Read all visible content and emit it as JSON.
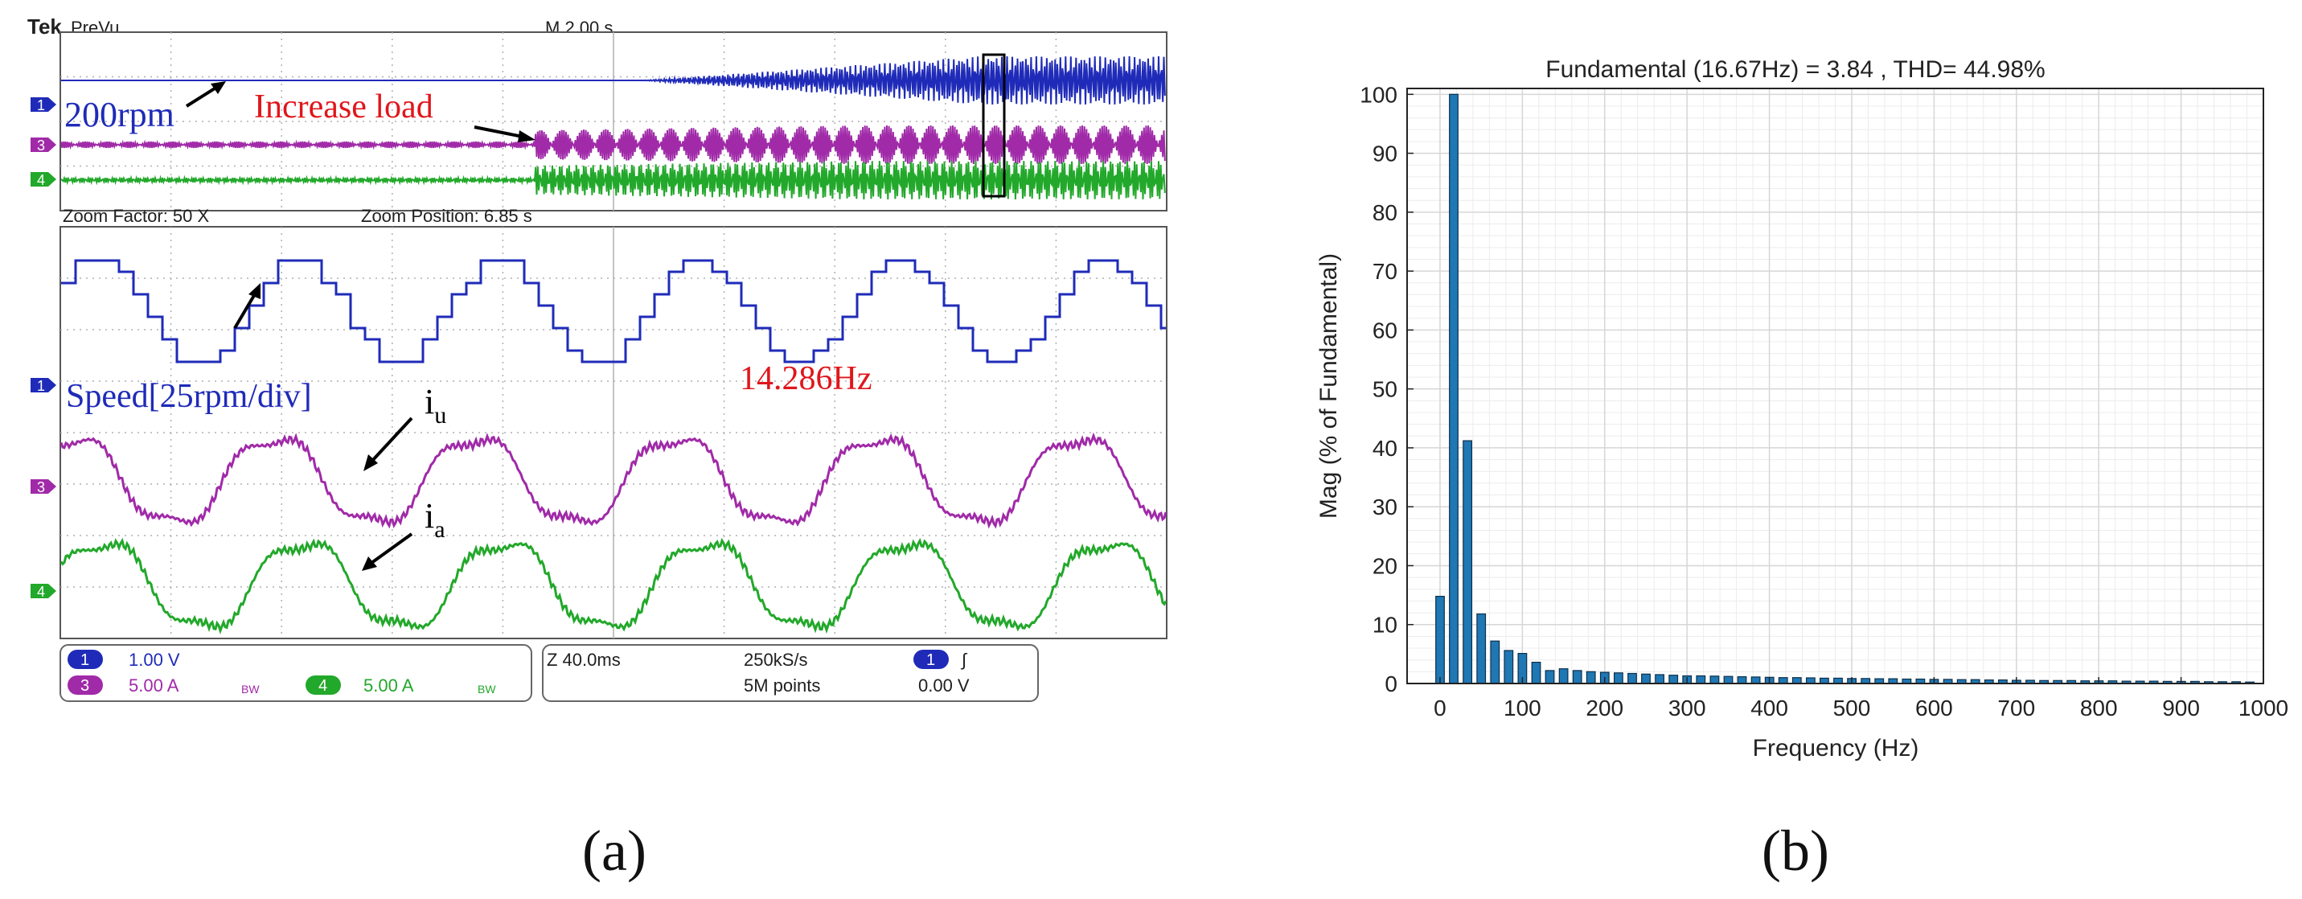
{
  "colors": {
    "ch1": "#1f2bb8",
    "ch3": "#a02aa8",
    "ch4": "#22a82a",
    "red_note": "#e0161b",
    "bar_fill": "#1f77b4",
    "grid": "#d6d6d6",
    "osc_grid": "#b0b0b0"
  },
  "scope": {
    "brand": "Tek",
    "mode": "PreVu",
    "timebase_top": "M 2.00 s",
    "zoom_factor": "Zoom Factor: 50 X",
    "zoom_position": "Zoom Position: 6.85 s",
    "ch_markers": [
      "1",
      "3",
      "4"
    ],
    "annotations": {
      "speed_200": "200rpm",
      "increase_load": "Increase load",
      "speed_div": "Speed[25rpm/div]",
      "freq": "14.286Hz",
      "iu_main": "i",
      "iu_sub": "u",
      "ia_main": "i",
      "ia_sub": "a"
    },
    "settings": {
      "ch1_num": "1",
      "ch1_scale": "1.00 V",
      "ch3_num": "3",
      "ch3_scale": "5.00 A",
      "ch4_num": "4",
      "ch4_scale": "5.00 A",
      "bw": "BW",
      "zoom_time": "Z 40.0ms",
      "sample_rate": "250kS/s",
      "points": "5M points",
      "trig_ch": "1",
      "trig_level": "0.00 V",
      "trig_slope": "∫"
    }
  },
  "captions": {
    "a": "(a)",
    "b": "(b)"
  },
  "chart_data": {
    "type": "bar",
    "title": "Fundamental (16.67Hz) = 3.84 , THD= 44.98%",
    "xlabel": "Frequency (Hz)",
    "ylabel": "Mag (% of Fundamental)",
    "xlim": [
      -40,
      1000
    ],
    "ylim": [
      0,
      101
    ],
    "xticks": [
      0,
      100,
      200,
      300,
      400,
      500,
      600,
      700,
      800,
      900,
      1000
    ],
    "yticks": [
      0,
      10,
      20,
      30,
      40,
      50,
      60,
      70,
      80,
      90,
      100
    ],
    "grid": true,
    "bin_hz": 16.67,
    "values": [
      14.8,
      100,
      41.2,
      11.8,
      7.2,
      5.6,
      5.1,
      3.6,
      2.2,
      2.5,
      2.2,
      2.0,
      1.9,
      1.8,
      1.7,
      1.6,
      1.5,
      1.4,
      1.3,
      1.3,
      1.25,
      1.2,
      1.15,
      1.1,
      1.05,
      1.0,
      1.0,
      0.95,
      0.9,
      0.9,
      0.85,
      0.85,
      0.8,
      0.8,
      0.75,
      0.75,
      0.7,
      0.7,
      0.65,
      0.65,
      0.6,
      0.6,
      0.55,
      0.55,
      0.5,
      0.5,
      0.5,
      0.45,
      0.45,
      0.45,
      0.4,
      0.4,
      0.4,
      0.35,
      0.35,
      0.35,
      0.3,
      0.3,
      0.3,
      0.25
    ]
  }
}
